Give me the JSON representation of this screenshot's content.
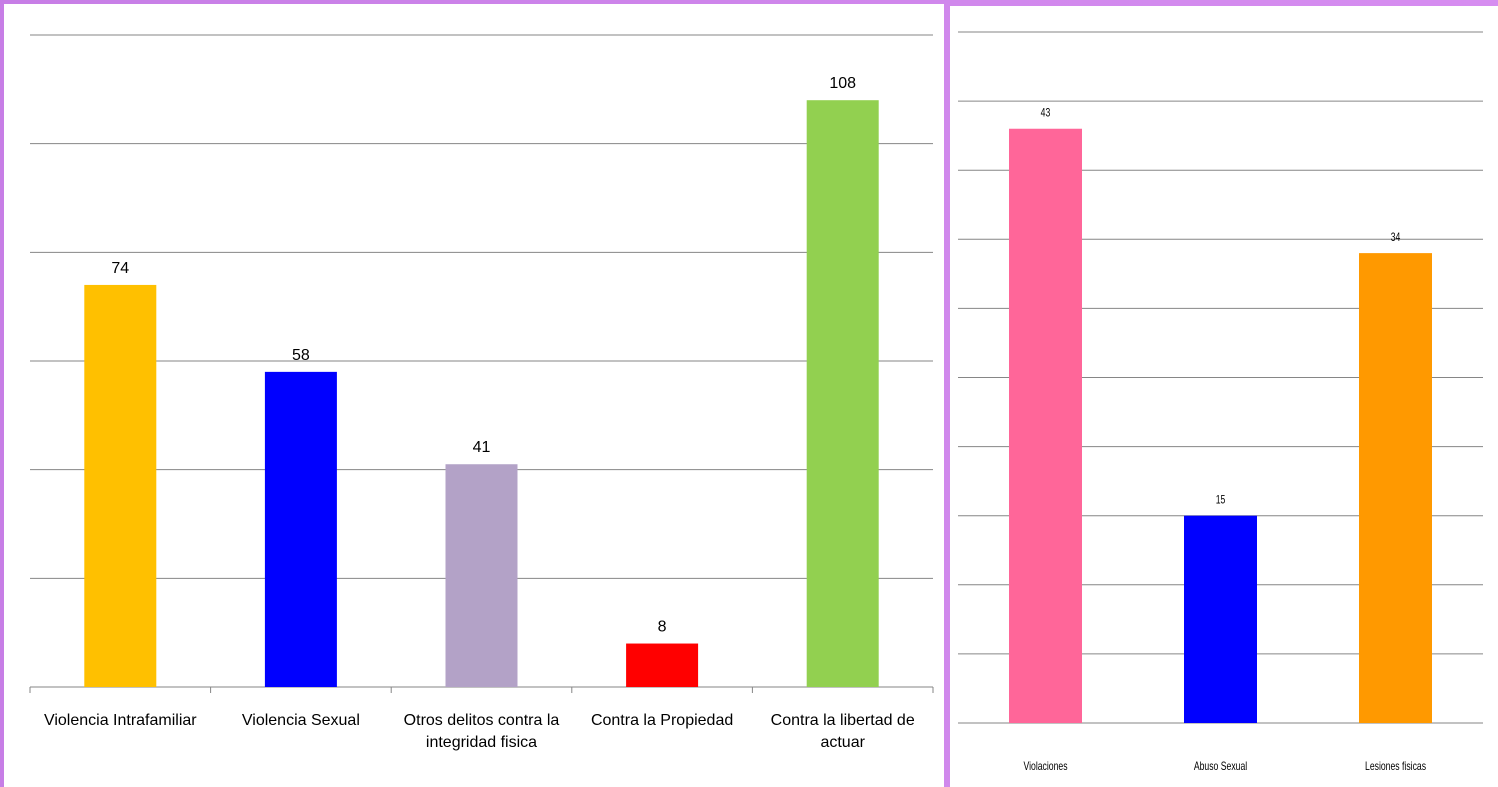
{
  "chart_data": [
    {
      "type": "bar",
      "categories": [
        "Violencia Intrafamiliar",
        "Violencia Sexual",
        "Otros delitos contra la integridad fisica",
        "Contra la Propiedad",
        "Contra la libertad de actuar"
      ],
      "values": [
        74,
        58,
        41,
        8,
        108
      ],
      "colors": [
        "#ffc000",
        "#0000ff",
        "#b3a2c7",
        "#ff0000",
        "#92d050"
      ],
      "ylim": [
        0,
        120
      ],
      "yticks": [
        0,
        20,
        40,
        60,
        80,
        100,
        120
      ],
      "grid": true
    },
    {
      "type": "bar",
      "categories": [
        "Violaciones",
        "Abuso Sexual",
        "Lesiones fisicas"
      ],
      "values": [
        43,
        15,
        34
      ],
      "colors": [
        "#ff6699",
        "#0000ff",
        "#ff9900"
      ],
      "ylim": [
        0,
        50
      ],
      "yticks": [
        0,
        5,
        10,
        15,
        20,
        25,
        30,
        35,
        40,
        45,
        50
      ],
      "grid": true
    }
  ]
}
